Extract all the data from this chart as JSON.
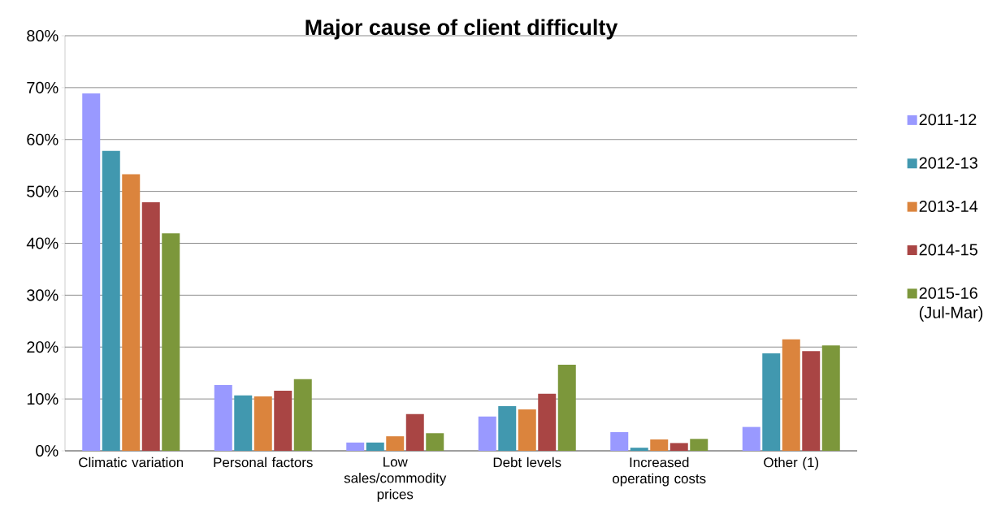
{
  "chart_data": {
    "type": "bar",
    "title": "Major cause of client difficulty",
    "categories": [
      "Climatic variation",
      "Personal factors",
      "Low sales/commodity prices",
      "Debt levels",
      "Increased operating costs",
      "Other (1)"
    ],
    "series": [
      {
        "name": "2011-12",
        "color": "#9999ff",
        "values": [
          68.9,
          12.7,
          1.6,
          6.6,
          3.6,
          4.6
        ]
      },
      {
        "name": "2012-13",
        "color": "#4198af",
        "values": [
          57.8,
          10.7,
          1.6,
          8.6,
          0.6,
          18.8
        ]
      },
      {
        "name": "2013-14",
        "color": "#db843d",
        "values": [
          53.3,
          10.5,
          2.8,
          8.0,
          2.2,
          21.5
        ]
      },
      {
        "name": "2014-15",
        "color": "#a94544",
        "values": [
          47.9,
          11.6,
          7.1,
          11.0,
          1.5,
          19.2
        ]
      },
      {
        "name": "2015-16 (Jul-Mar)",
        "color": "#7c973b",
        "values": [
          41.9,
          13.8,
          3.4,
          16.6,
          2.3,
          20.3
        ]
      }
    ],
    "ylim": [
      0,
      80
    ],
    "yticks": [
      {
        "value": 0,
        "label": "0%"
      },
      {
        "value": 10,
        "label": "10%"
      },
      {
        "value": 20,
        "label": "20%"
      },
      {
        "value": 30,
        "label": "30%"
      },
      {
        "value": 40,
        "label": "40%"
      },
      {
        "value": 50,
        "label": "50%"
      },
      {
        "value": 60,
        "label": "60%"
      },
      {
        "value": 70,
        "label": "70%"
      },
      {
        "value": 80,
        "label": "80%"
      }
    ],
    "grid": "y",
    "legend": "right"
  }
}
